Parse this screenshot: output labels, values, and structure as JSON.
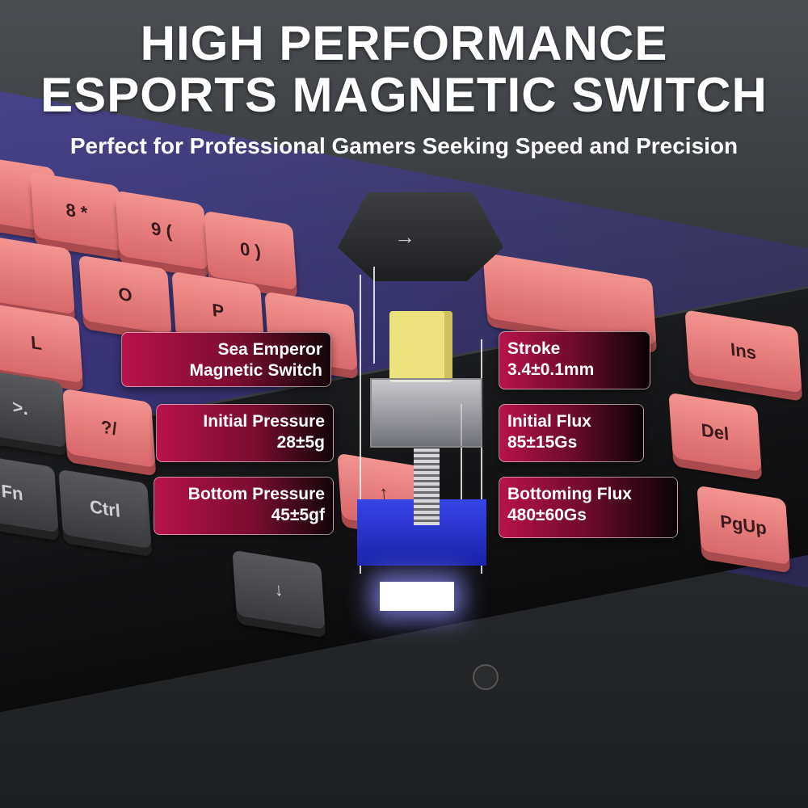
{
  "header": {
    "title_line1": "HIGH PERFORMANCE",
    "title_line2": "ESPORTS MAGNETIC SWITCH",
    "subtitle": "Perfect for Professional Gamers Seeking Speed and Precision"
  },
  "keycaps": [
    "8 *",
    "9 (",
    "0 )",
    "O",
    "P",
    "L",
    ">.",
    "?/",
    "Fn",
    "Ctrl",
    "Ins",
    "Del",
    "PgUp",
    "↑",
    "↓",
    "→"
  ],
  "specs": {
    "switch_name": {
      "line1": "Sea Emperor",
      "line2": "Magnetic Switch"
    },
    "initial_pressure": {
      "label": "Initial Pressure",
      "value": "28±5g"
    },
    "bottom_pressure": {
      "label": "Bottom Pressure",
      "value": "45±5gf"
    },
    "stroke": {
      "label": "Stroke",
      "value": "3.4±0.1mm"
    },
    "initial_flux": {
      "label": "Initial Flux",
      "value": "85±15Gs"
    },
    "bottoming_flux": {
      "label": "Bottoming Flux",
      "value": "480±60Gs"
    }
  },
  "colors": {
    "accent": "#b8124a",
    "keycap_pink": "#e8787a",
    "keycap_dark": "#3a3b3e",
    "switch_base": "#2a36d0",
    "stem": "#ece27e"
  }
}
